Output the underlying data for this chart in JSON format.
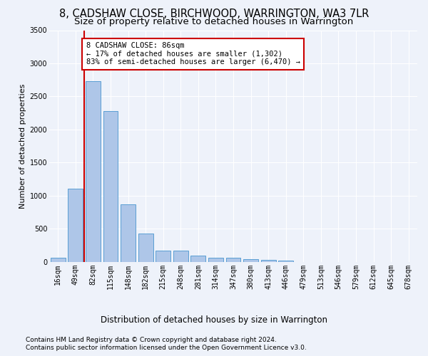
{
  "title": "8, CADSHAW CLOSE, BIRCHWOOD, WARRINGTON, WA3 7LR",
  "subtitle": "Size of property relative to detached houses in Warrington",
  "xlabel": "Distribution of detached houses by size in Warrington",
  "ylabel": "Number of detached properties",
  "bar_color": "#aec6e8",
  "bar_edge_color": "#5a9fd4",
  "background_color": "#eef2fa",
  "grid_color": "#ffffff",
  "categories": [
    "16sqm",
    "49sqm",
    "82sqm",
    "115sqm",
    "148sqm",
    "182sqm",
    "215sqm",
    "248sqm",
    "281sqm",
    "314sqm",
    "347sqm",
    "380sqm",
    "413sqm",
    "446sqm",
    "479sqm",
    "513sqm",
    "546sqm",
    "579sqm",
    "612sqm",
    "645sqm",
    "678sqm"
  ],
  "values": [
    55,
    1100,
    2730,
    2280,
    870,
    430,
    170,
    165,
    90,
    60,
    55,
    35,
    30,
    15,
    0,
    0,
    0,
    0,
    0,
    0,
    0
  ],
  "ylim": [
    0,
    3500
  ],
  "yticks": [
    0,
    500,
    1000,
    1500,
    2000,
    2500,
    3000,
    3500
  ],
  "vline_x_index": 2,
  "vline_color": "#cc0000",
  "annotation_text": "8 CADSHAW CLOSE: 86sqm\n← 17% of detached houses are smaller (1,302)\n83% of semi-detached houses are larger (6,470) →",
  "annotation_box_color": "#ffffff",
  "annotation_border_color": "#cc0000",
  "footnote1": "Contains HM Land Registry data © Crown copyright and database right 2024.",
  "footnote2": "Contains public sector information licensed under the Open Government Licence v3.0.",
  "title_fontsize": 10.5,
  "subtitle_fontsize": 9.5,
  "xlabel_fontsize": 8.5,
  "ylabel_fontsize": 8,
  "tick_fontsize": 7,
  "annotation_fontsize": 7.5,
  "footnote_fontsize": 6.5
}
